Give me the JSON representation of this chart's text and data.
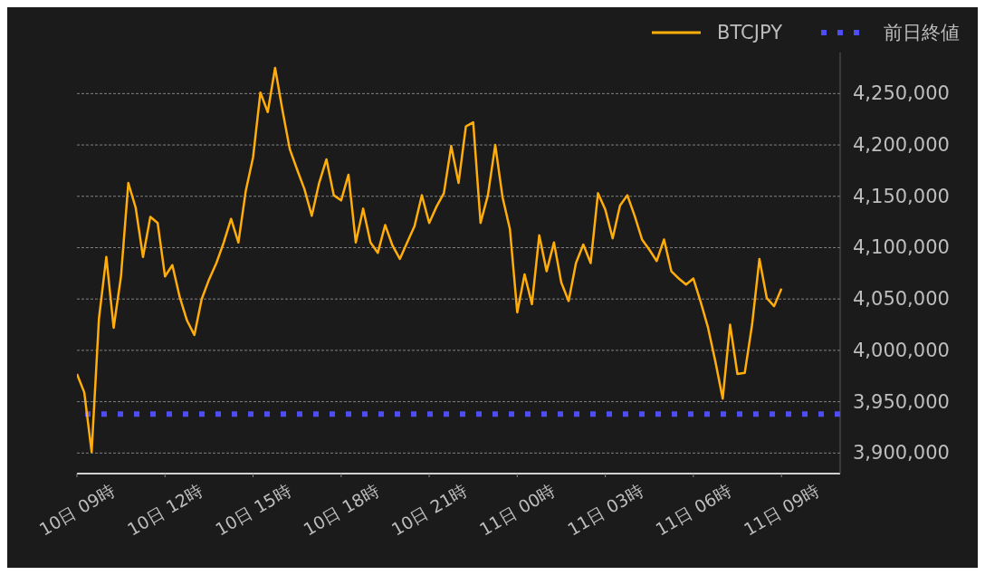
{
  "chart_data": {
    "type": "line",
    "categories": [
      "10日 09時",
      null,
      null,
      null,
      null,
      null,
      null,
      null,
      null,
      null,
      null,
      null,
      "10日 12時",
      null,
      null,
      null,
      null,
      null,
      null,
      null,
      null,
      null,
      null,
      null,
      "10日 15時",
      null,
      null,
      null,
      null,
      null,
      null,
      null,
      null,
      null,
      null,
      null,
      "10日 18時",
      null,
      null,
      null,
      null,
      null,
      null,
      null,
      null,
      null,
      null,
      null,
      "10日 21時",
      null,
      null,
      null,
      null,
      null,
      null,
      null,
      null,
      null,
      null,
      null,
      "11日 00時",
      null,
      null,
      null,
      null,
      null,
      null,
      null,
      null,
      null,
      null,
      null,
      "11日 03時",
      null,
      null,
      null,
      null,
      null,
      null,
      null,
      null,
      null,
      null,
      null,
      "11日 06時",
      null,
      null,
      null,
      null,
      null,
      null,
      null,
      null,
      null,
      null,
      null,
      "11日 09時",
      null,
      null,
      null,
      null,
      null,
      null,
      null,
      null
    ],
    "series": [
      {
        "name": "BTCJPY",
        "color": "#ffad0a",
        "values": [
          3977000,
          3959000,
          3901000,
          4031000,
          4091000,
          4022000,
          4072000,
          4163000,
          4139000,
          4091000,
          4130000,
          4124000,
          4072000,
          4083000,
          4052000,
          4029000,
          4015000,
          4050000,
          4069000,
          4085000,
          4105000,
          4128000,
          4105000,
          4155000,
          4188000,
          4251000,
          4232000,
          4275000,
          4234000,
          4196000,
          4176000,
          4157000,
          4131000,
          4163000,
          4186000,
          4151000,
          4146000,
          4171000,
          4105000,
          4138000,
          4105000,
          4095000,
          4122000,
          4102000,
          4089000,
          4105000,
          4121000,
          4151000,
          4124000,
          4140000,
          4153000,
          4199000,
          4163000,
          4218000,
          4222000,
          4124000,
          4151000,
          4200000,
          4149000,
          4118000,
          4037000,
          4074000,
          4045000,
          4112000,
          4077000,
          4105000,
          4066000,
          4048000,
          4085000,
          4103000,
          4085000,
          4153000,
          4137000,
          4109000,
          4141000,
          4151000,
          4131000,
          4108000,
          4098000,
          4087000,
          4108000,
          4077000,
          4070000,
          4064000,
          4070000,
          4047000,
          4022000,
          3989000,
          3953000,
          4025000,
          3977000,
          3978000,
          4025000,
          4089000,
          4051000,
          4043000,
          4060000,
          null,
          null,
          null,
          null,
          null,
          null,
          null,
          null
        ]
      }
    ],
    "ref_lines": [
      {
        "axis": "y",
        "value": 3938000,
        "label": "前日終値",
        "color": "#4d4df5",
        "line_style": "dotted"
      }
    ],
    "ylim": [
      3880000,
      4290000
    ],
    "yticks": [
      {
        "value": 3900000,
        "label": "3,900,000"
      },
      {
        "value": 3950000,
        "label": "3,950,000"
      },
      {
        "value": 4000000,
        "label": "4,000,000"
      },
      {
        "value": 4050000,
        "label": "4,050,000"
      },
      {
        "value": 4100000,
        "label": "4,100,000"
      },
      {
        "value": 4150000,
        "label": "4,150,000"
      },
      {
        "value": 4200000,
        "label": "4,200,000"
      },
      {
        "value": 4250000,
        "label": "4,250,000"
      }
    ],
    "grid": "y",
    "legend": "top right",
    "marker": "none",
    "line_style": "solid"
  }
}
